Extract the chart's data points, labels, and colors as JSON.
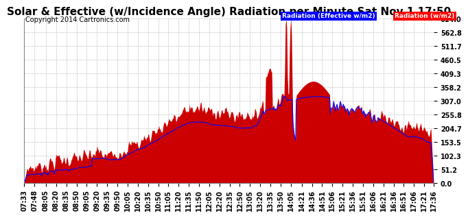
{
  "title": "Solar & Effective (w/Incidence Angle) Radiation per Minute Sat Nov 1 17:50",
  "copyright": "Copyright 2014 Cartronics.com",
  "legend1_text": "Radiation (Effective w/m2)",
  "legend2_text": "Radiation (w/m2)",
  "legend1_color": "#0000ff",
  "legend2_color": "#ff0000",
  "fill_color": "#cc0000",
  "line_color": "#0000ff",
  "bg_color": "#ffffff",
  "grid_color": "#bbbbbb",
  "ylim": [
    0.0,
    614.0
  ],
  "yticks": [
    0.0,
    51.2,
    102.3,
    153.5,
    204.7,
    255.8,
    307.0,
    358.2,
    409.3,
    460.5,
    511.7,
    562.8,
    614.0
  ],
  "time_labels": [
    "07:33",
    "07:48",
    "08:05",
    "08:20",
    "08:35",
    "08:50",
    "09:05",
    "09:20",
    "09:35",
    "09:50",
    "10:05",
    "10:20",
    "10:35",
    "10:50",
    "11:05",
    "11:20",
    "11:35",
    "11:50",
    "12:05",
    "12:20",
    "12:35",
    "12:50",
    "13:05",
    "13:20",
    "13:35",
    "13:50",
    "14:05",
    "14:21",
    "14:36",
    "14:51",
    "15:06",
    "15:21",
    "15:36",
    "15:51",
    "16:06",
    "16:21",
    "16:36",
    "16:51",
    "17:06",
    "17:21",
    "17:36"
  ],
  "title_fontsize": 11,
  "tick_fontsize": 7,
  "copyright_fontsize": 7
}
